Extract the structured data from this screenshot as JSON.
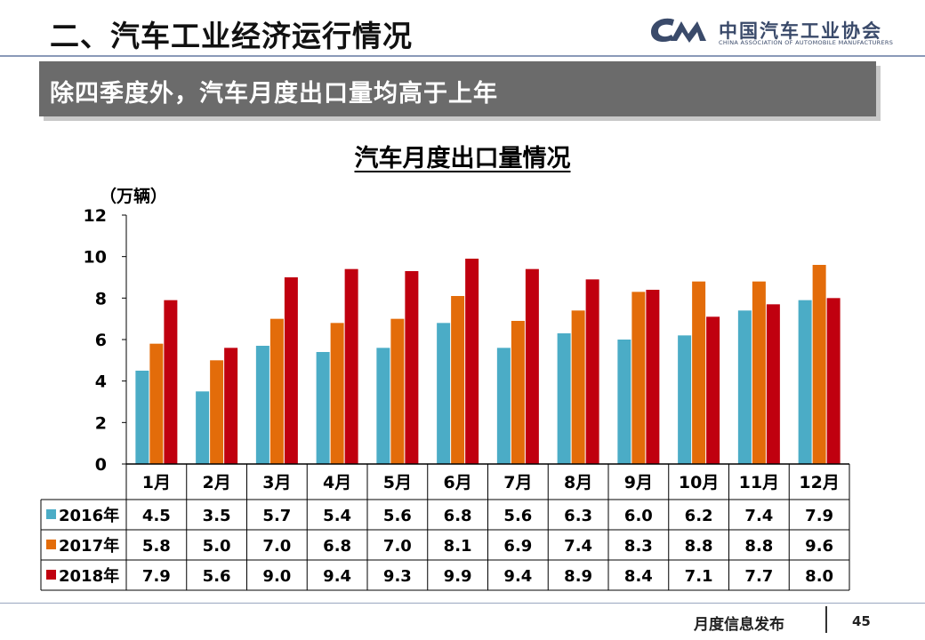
{
  "header": {
    "title": "二、汽车工业经济运行情况",
    "logo_text_cn": "中国汽车工业协会",
    "logo_text_en": "CHINA ASSOCIATION OF AUTOMOBILE MANUFACTURERS",
    "logo_mark": "CAAM"
  },
  "subtitle": "除四季度外，汽车月度出口量均高于上年",
  "colors": {
    "accent_bar": "#6b6b6b",
    "series_2016": "#4bacc6",
    "series_2017": "#e36c0a",
    "series_2018": "#c0000f"
  },
  "chart_data": {
    "type": "bar",
    "title": "汽车月度出口量情况",
    "ylabel": "（万辆）",
    "ylim": [
      0,
      12
    ],
    "yticks": [
      0,
      2,
      4,
      6,
      8,
      10,
      12
    ],
    "grid": false,
    "legend": "data-table",
    "categories": [
      "1月",
      "2月",
      "3月",
      "4月",
      "5月",
      "6月",
      "7月",
      "8月",
      "9月",
      "10月",
      "11月",
      "12月"
    ],
    "series": [
      {
        "name": "2016年",
        "values": [
          4.5,
          3.5,
          5.7,
          5.4,
          5.6,
          6.8,
          5.6,
          6.3,
          6.0,
          6.2,
          7.4,
          7.9
        ],
        "labels": [
          "4.5",
          "3.5",
          "5.7",
          "5.4",
          "5.6",
          "6.8",
          "5.6",
          "6.3",
          "6.0",
          "6.2",
          "7.4",
          "7.9"
        ]
      },
      {
        "name": "2017年",
        "values": [
          5.8,
          5.0,
          7.0,
          6.8,
          7.0,
          8.1,
          6.9,
          7.4,
          8.3,
          8.8,
          8.8,
          9.6
        ],
        "labels": [
          "5.8",
          "5.0",
          "7.0",
          "6.8",
          "7.0",
          "8.1",
          "6.9",
          "7.4",
          "8.3",
          "8.8",
          "8.8",
          "9.6"
        ]
      },
      {
        "name": "2018年",
        "values": [
          7.9,
          5.6,
          9.0,
          9.4,
          9.3,
          9.9,
          9.4,
          8.9,
          8.4,
          7.1,
          7.7,
          8.0
        ],
        "labels": [
          "7.9",
          "5.6",
          "9.0",
          "9.4",
          "9.3",
          "9.9",
          "9.4",
          "8.9",
          "8.4",
          "7.1",
          "7.7",
          "8.0"
        ]
      }
    ]
  },
  "footer": {
    "text": "月度信息发布",
    "page_number": "45"
  }
}
